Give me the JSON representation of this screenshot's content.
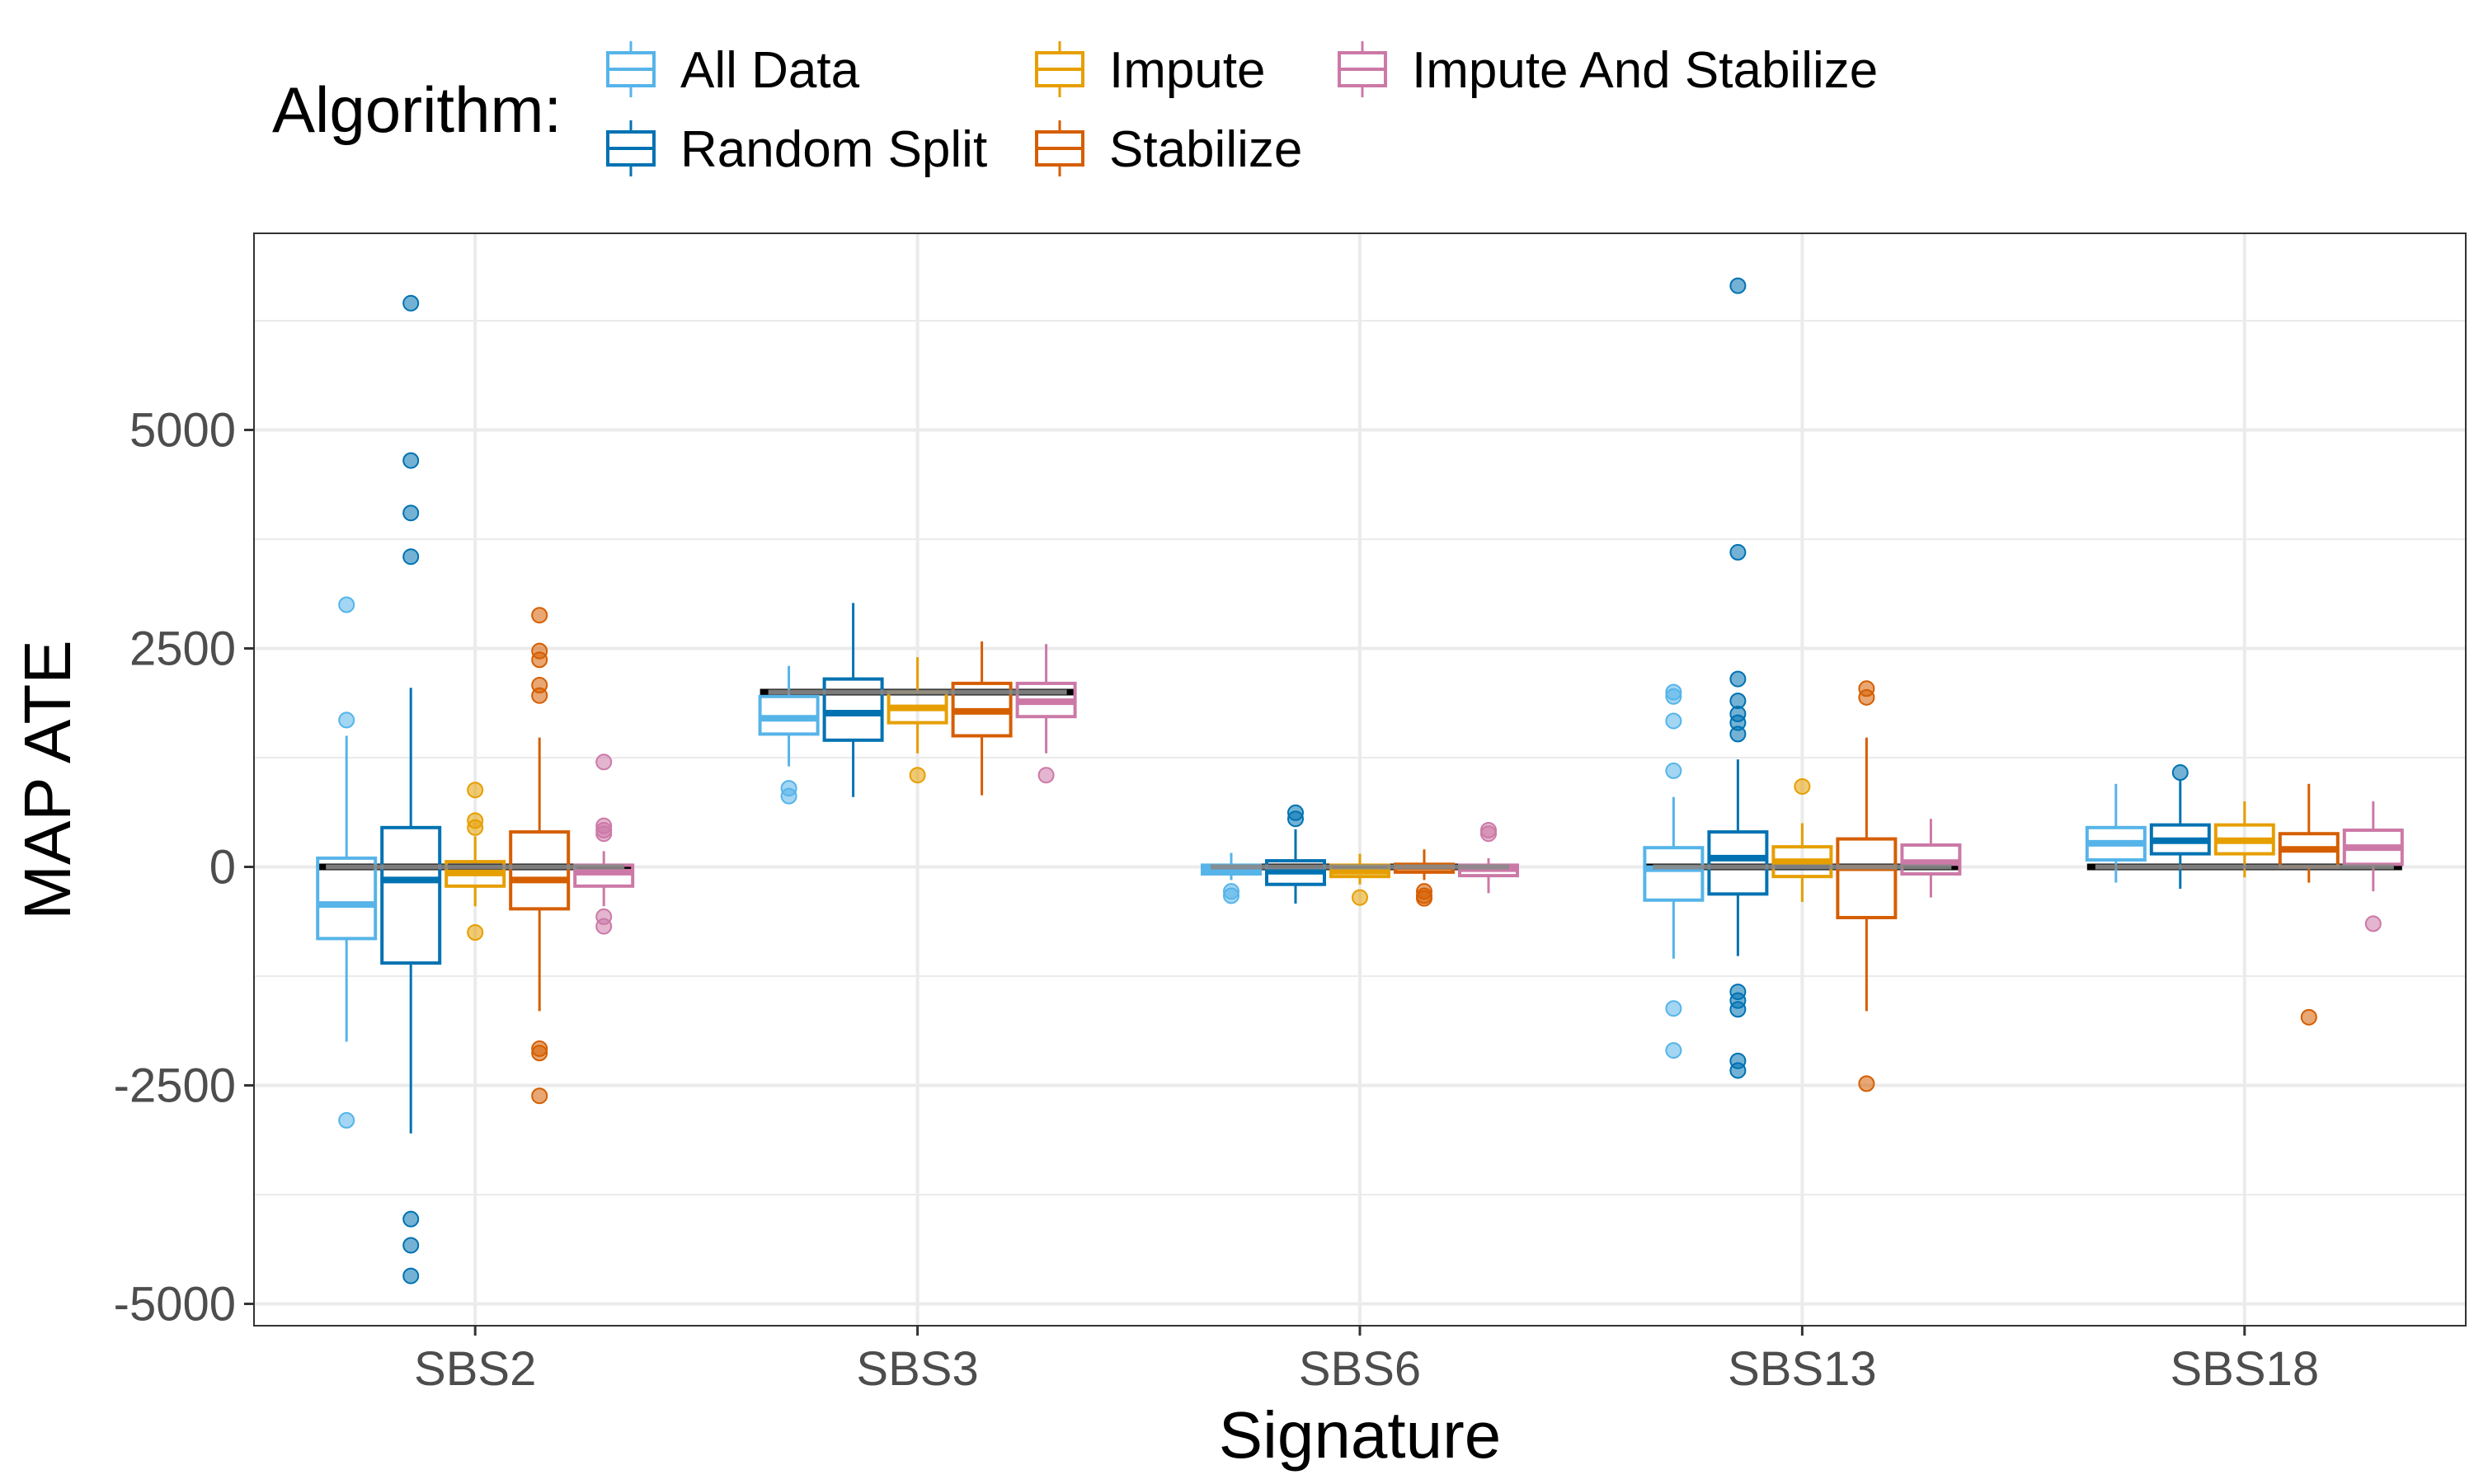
{
  "chart_data": {
    "type": "boxplot",
    "xlabel": "Signature",
    "ylabel": "MAP ATE",
    "ylim": [
      -5250,
      7250
    ],
    "yticks": [
      -5000,
      -2500,
      0,
      2500,
      5000
    ],
    "grid": true,
    "categories": [
      "SBS2",
      "SBS3",
      "SBS6",
      "SBS13",
      "SBS18"
    ],
    "legend": {
      "title": "Algorithm:",
      "position": "top",
      "entries": [
        "All Data",
        "Random Split",
        "Impute",
        "Stabilize",
        "Impute And Stabilize"
      ]
    },
    "reference_lines": [
      0,
      2000,
      0,
      0,
      0
    ],
    "series": [
      {
        "name": "All Data",
        "color": "#56B4E9",
        "boxes": [
          {
            "min": -2000,
            "q1": -820,
            "median": -430,
            "q3": 100,
            "max": 1500,
            "outliers": [
              3000,
              1680,
              -2900
            ]
          },
          {
            "min": 1150,
            "q1": 1520,
            "median": 1700,
            "q3": 1950,
            "max": 2300,
            "outliers": [
              900,
              810
            ]
          },
          {
            "min": -150,
            "q1": -80,
            "median": -30,
            "q3": 20,
            "max": 160,
            "outliers": [
              -280,
              -330
            ]
          },
          {
            "min": -1050,
            "q1": -380,
            "median": -20,
            "q3": 220,
            "max": 800,
            "outliers": [
              2000,
              1950,
              1670,
              1100,
              -1620,
              -2100
            ]
          },
          {
            "min": -180,
            "q1": 80,
            "median": 270,
            "q3": 450,
            "max": 950,
            "outliers": []
          }
        ]
      },
      {
        "name": "Random Split",
        "color": "#0072B2",
        "boxes": [
          {
            "min": -3050,
            "q1": -1100,
            "median": -150,
            "q3": 450,
            "max": 2050,
            "outliers": [
              6450,
              4650,
              4050,
              3550,
              -4030,
              -4330,
              -4680
            ]
          },
          {
            "min": 800,
            "q1": 1450,
            "median": 1760,
            "q3": 2150,
            "max": 3020,
            "outliers": []
          },
          {
            "min": -420,
            "q1": -200,
            "median": -50,
            "q3": 70,
            "max": 430,
            "outliers": [
              620,
              550
            ]
          },
          {
            "min": -1020,
            "q1": -310,
            "median": 100,
            "q3": 400,
            "max": 1230,
            "outliers": [
              6650,
              3600,
              2150,
              1900,
              1750,
              1650,
              1520,
              -1430,
              -1530,
              -1630,
              -2220,
              -2330
            ]
          },
          {
            "min": -250,
            "q1": 150,
            "median": 300,
            "q3": 480,
            "max": 1000,
            "outliers": [
              1080
            ]
          }
        ]
      },
      {
        "name": "Impute",
        "color": "#E69F00",
        "boxes": [
          {
            "min": -450,
            "q1": -220,
            "median": -70,
            "q3": 60,
            "max": 350,
            "outliers": [
              880,
              530,
              450,
              -750
            ]
          },
          {
            "min": 1300,
            "q1": 1650,
            "median": 1820,
            "q3": 2000,
            "max": 2400,
            "outliers": [
              1050
            ]
          },
          {
            "min": -200,
            "q1": -110,
            "median": -50,
            "q3": 20,
            "max": 150,
            "outliers": [
              -350
            ]
          },
          {
            "min": -400,
            "q1": -110,
            "median": 60,
            "q3": 230,
            "max": 500,
            "outliers": [
              920
            ]
          },
          {
            "min": -120,
            "q1": 150,
            "median": 300,
            "q3": 480,
            "max": 750,
            "outliers": []
          }
        ]
      },
      {
        "name": "Stabilize",
        "color": "#D55E00",
        "boxes": [
          {
            "min": -1650,
            "q1": -480,
            "median": -150,
            "q3": 400,
            "max": 1480,
            "outliers": [
              2880,
              2470,
              2370,
              2080,
              1960,
              -2080,
              -2130,
              -2620
            ]
          },
          {
            "min": 820,
            "q1": 1500,
            "median": 1780,
            "q3": 2100,
            "max": 2580,
            "outliers": []
          },
          {
            "min": -150,
            "q1": -60,
            "median": 0,
            "q3": 30,
            "max": 200,
            "outliers": [
              -280,
              -330,
              -360
            ]
          },
          {
            "min": -1650,
            "q1": -580,
            "median": -10,
            "q3": 320,
            "max": 1480,
            "outliers": [
              2040,
              1940,
              -2480
            ]
          },
          {
            "min": -180,
            "q1": 0,
            "median": 200,
            "q3": 380,
            "max": 950,
            "outliers": [
              -1720
            ]
          }
        ]
      },
      {
        "name": "Impute And Stabilize",
        "color": "#CC79A7",
        "boxes": [
          {
            "min": -450,
            "q1": -220,
            "median": -60,
            "q3": 20,
            "max": 180,
            "outliers": [
              1200,
              470,
              420,
              380,
              -570,
              -680
            ]
          },
          {
            "min": 1300,
            "q1": 1720,
            "median": 1890,
            "q3": 2100,
            "max": 2550,
            "outliers": [
              1050
            ]
          },
          {
            "min": -300,
            "q1": -100,
            "median": -20,
            "q3": 20,
            "max": 100,
            "outliers": [
              420,
              380
            ]
          },
          {
            "min": -350,
            "q1": -80,
            "median": 50,
            "q3": 250,
            "max": 550,
            "outliers": []
          },
          {
            "min": -280,
            "q1": 30,
            "median": 220,
            "q3": 420,
            "max": 750,
            "outliers": [
              -650
            ]
          }
        ]
      }
    ]
  }
}
